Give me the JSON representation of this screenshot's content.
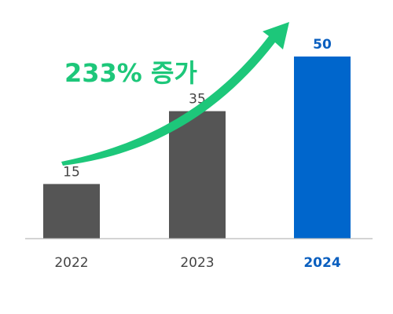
{
  "chart_data": {
    "type": "bar",
    "categories": [
      "2022",
      "2023",
      "2024"
    ],
    "values": [
      15,
      35,
      50
    ],
    "title": "",
    "xlabel": "",
    "ylabel": "",
    "ylim": [
      0,
      50
    ],
    "grid": false,
    "highlight_index": 2,
    "annotation": "233% 증가"
  },
  "colors": {
    "bar_default": "#555555",
    "bar_highlight": "#0066cc",
    "label_default": "#444444",
    "label_highlight": "#0a5fbf",
    "accent_green": "#1dc77a",
    "axis_line": "#bbbbbb"
  }
}
